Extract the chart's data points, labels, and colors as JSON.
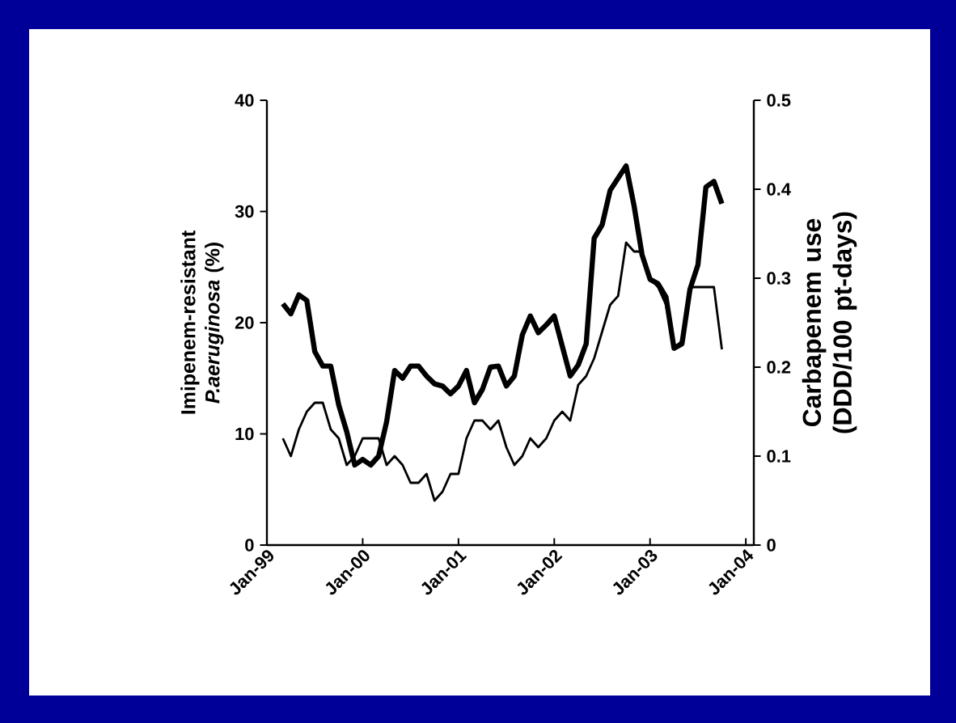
{
  "chart_data": {
    "type": "line",
    "ylabel": "Imipenem-resistant *P.aeruginosa* (%)",
    "y2label": "Carbapenem use (DDD/100 pt-days)",
    "x": [
      "1999-03",
      "1999-04",
      "1999-05",
      "1999-06",
      "1999-07",
      "1999-08",
      "1999-09",
      "1999-10",
      "1999-11",
      "1999-12",
      "2000-01",
      "2000-02",
      "2000-03",
      "2000-04",
      "2000-05",
      "2000-06",
      "2000-07",
      "2000-08",
      "2000-09",
      "2000-10",
      "2000-11",
      "2000-12",
      "2001-01",
      "2001-02",
      "2001-03",
      "2001-04",
      "2001-05",
      "2001-06",
      "2001-07",
      "2001-08",
      "2001-09",
      "2001-10",
      "2001-11",
      "2001-12",
      "2002-01",
      "2002-02",
      "2002-03",
      "2002-04",
      "2002-05",
      "2002-06",
      "2002-07",
      "2002-08",
      "2002-09",
      "2002-10",
      "2002-11",
      "2002-12",
      "2003-01",
      "2003-02",
      "2003-03",
      "2003-04",
      "2003-05",
      "2003-06",
      "2003-07",
      "2003-08",
      "2003-09",
      "2003-10"
    ],
    "series": [
      {
        "color": "#000000",
        "values": [
          21.7,
          20.8,
          22.5,
          22.0,
          17.4,
          16.1,
          16.1,
          12.6,
          10.2,
          7.2,
          7.7,
          7.2,
          8.0,
          11.1,
          15.7,
          15.0,
          16.1,
          16.1,
          15.2,
          14.5,
          14.3,
          13.6,
          14.3,
          15.7,
          12.8,
          14.0,
          16.0,
          16.1,
          14.3,
          15.2,
          18.9,
          20.6,
          19.1,
          19.8,
          20.6,
          17.9,
          15.2,
          16.2,
          18.1,
          27.6,
          28.8,
          31.9,
          33.0,
          34.1,
          30.5,
          26.1,
          23.9,
          23.5,
          22.3,
          17.7,
          18.1,
          23.0,
          25.2,
          32.2,
          32.7,
          30.7
        ]
      },
      {
        "color": "#000000",
        "axis": "y2",
        "values": [
          0.12,
          0.1,
          0.13,
          0.15,
          0.16,
          0.16,
          0.13,
          0.12,
          0.09,
          0.1,
          0.12,
          0.12,
          0.12,
          0.09,
          0.1,
          0.09,
          0.07,
          0.07,
          0.08,
          0.05,
          0.06,
          0.08,
          0.08,
          0.12,
          0.14,
          0.14,
          0.13,
          0.14,
          0.11,
          0.09,
          0.1,
          0.12,
          0.11,
          0.12,
          0.14,
          0.15,
          0.14,
          0.18,
          0.19,
          0.21,
          0.24,
          0.27,
          0.28,
          0.34,
          0.33,
          0.33,
          0.3,
          0.29,
          0.27,
          0.22,
          0.23,
          0.29,
          0.29,
          0.29,
          0.29,
          0.22
        ]
      }
    ],
    "xlim": [
      "1999-01",
      "2004-02"
    ],
    "xticks": [
      {
        "value": "1999-01",
        "label": "Jan-99"
      },
      {
        "value": "2000-01",
        "label": "Jan-00"
      },
      {
        "value": "2001-01",
        "label": "Jan-01"
      },
      {
        "value": "2002-01",
        "label": "Jan-02"
      },
      {
        "value": "2003-01",
        "label": "Jan-03"
      },
      {
        "value": "2004-01",
        "label": "Jan-04"
      }
    ],
    "ylim": [
      0,
      40
    ],
    "yticks": [
      0,
      10,
      20,
      30,
      40
    ],
    "y2lim": [
      0,
      0.5
    ],
    "y2ticks": [
      0,
      0.1,
      0.2,
      0.3,
      0.4,
      0.5
    ],
    "grid": false,
    "legend": false,
    "marker": "none",
    "line_style": "solid"
  }
}
